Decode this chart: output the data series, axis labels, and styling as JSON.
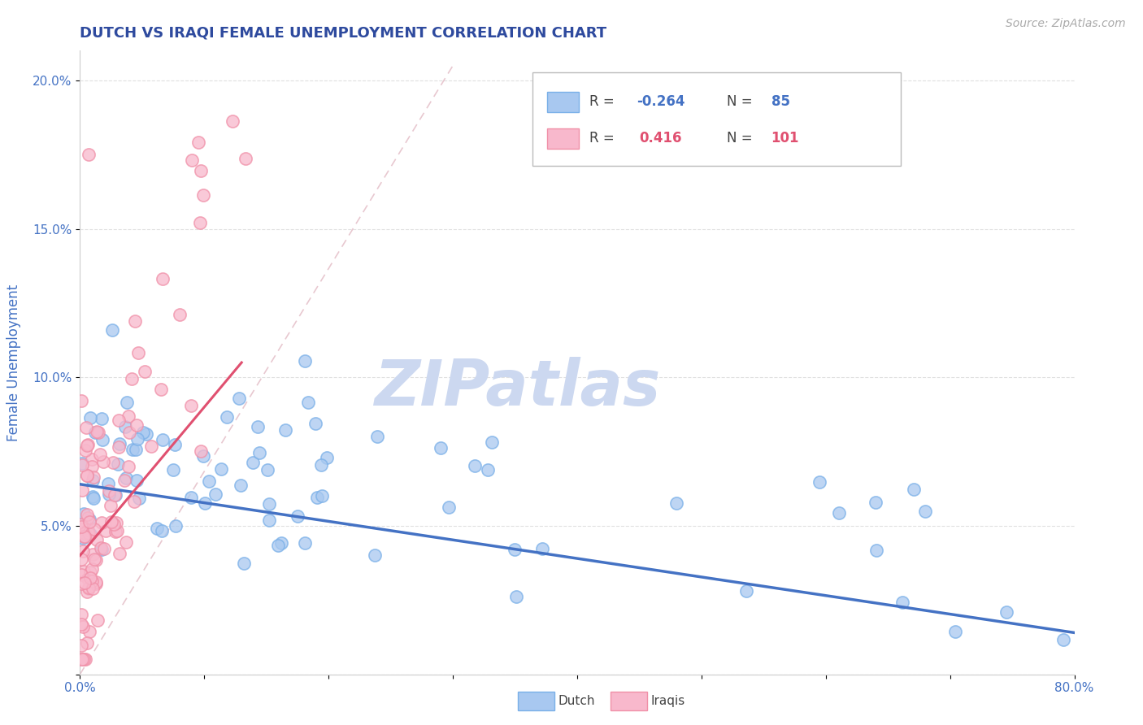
{
  "title": "DUTCH VS IRAQI FEMALE UNEMPLOYMENT CORRELATION CHART",
  "source_text": "Source: ZipAtlas.com",
  "ylabel": "Female Unemployment",
  "xlim": [
    0.0,
    0.8
  ],
  "ylim": [
    0.0,
    0.21
  ],
  "x_ticks": [
    0.0,
    0.1,
    0.2,
    0.3,
    0.4,
    0.5,
    0.6,
    0.7,
    0.8
  ],
  "x_tick_labels": [
    "0.0%",
    "",
    "",
    "",
    "",
    "",
    "",
    "",
    "80.0%"
  ],
  "y_ticks": [
    0.0,
    0.05,
    0.1,
    0.15,
    0.2
  ],
  "y_tick_labels": [
    "",
    "5.0%",
    "10.0%",
    "15.0%",
    "20.0%"
  ],
  "dutch_R": -0.264,
  "dutch_N": 85,
  "iraqi_R": 0.416,
  "iraqi_N": 101,
  "dutch_scatter_color": "#a8c8f0",
  "dutch_scatter_edge": "#7ab0e8",
  "iraqi_scatter_color": "#f8b8cc",
  "iraqi_scatter_edge": "#f090a8",
  "dutch_line_color": "#4472c4",
  "iraqi_line_color": "#e05070",
  "title_color": "#2E4A9E",
  "axis_label_color": "#4472c4",
  "tick_color": "#4472c4",
  "watermark_color": "#ccd8f0",
  "ref_line_color": "#e8c8d0",
  "background_color": "#ffffff",
  "grid_color": "#e0e0e0"
}
